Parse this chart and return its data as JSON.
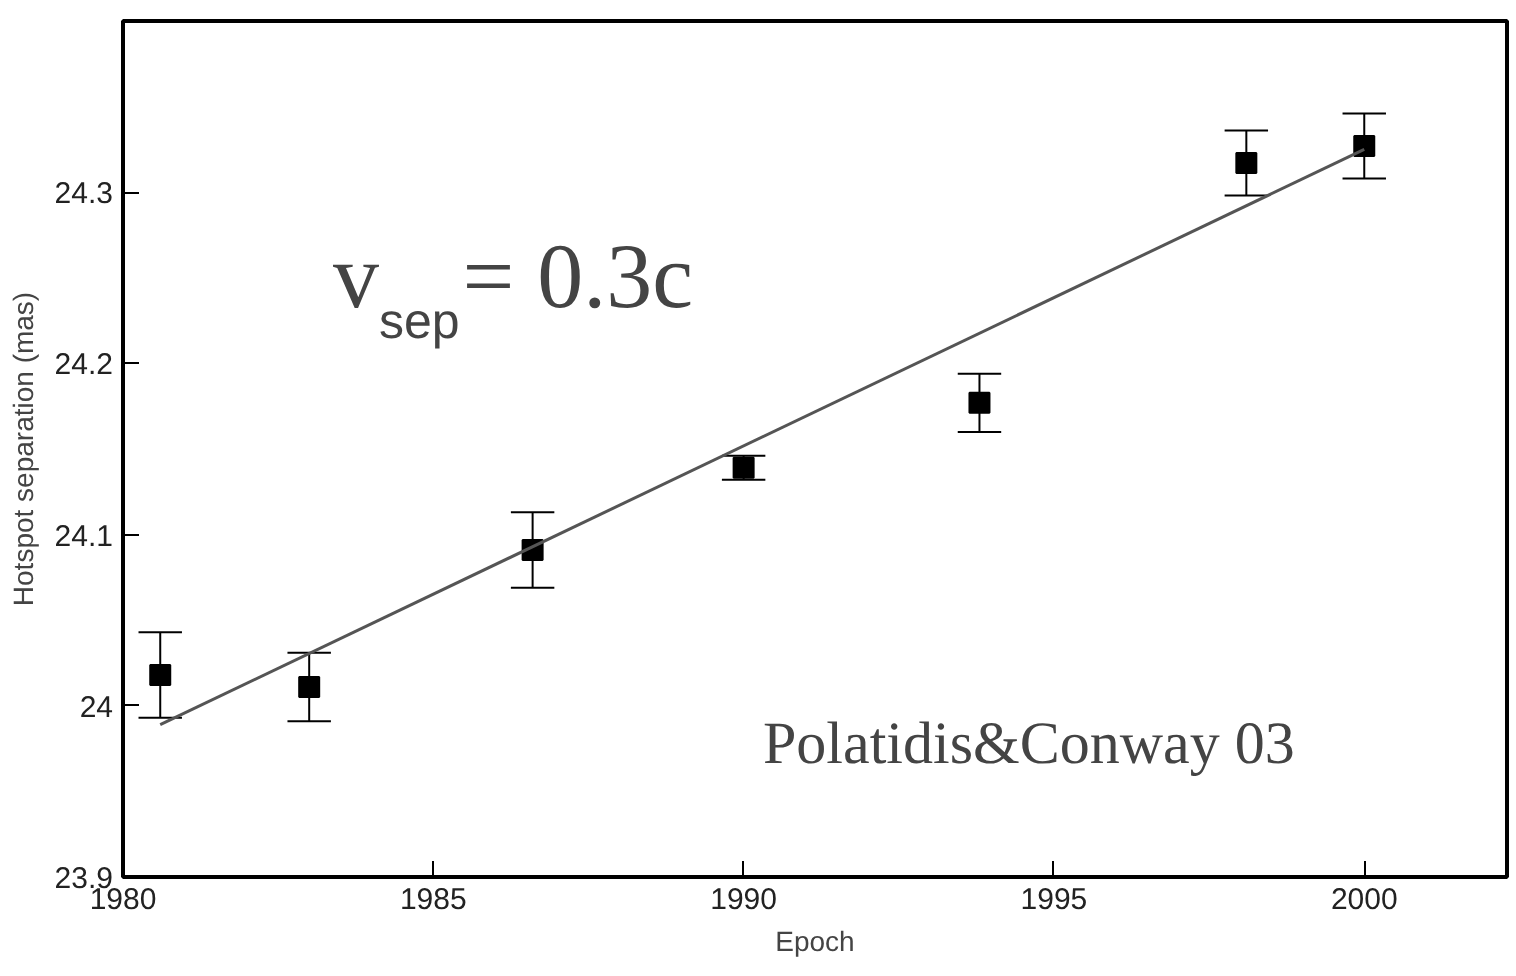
{
  "chart_data": {
    "type": "scatter",
    "xlabel": "Epoch",
    "ylabel": "Hotspot separation (mas)",
    "xlim": [
      1980,
      2002.3
    ],
    "ylim": [
      23.9,
      24.4
    ],
    "xticks": [
      1980,
      1985,
      1990,
      1995,
      2000
    ],
    "yticks": [
      23.9,
      24,
      24.1,
      24.2,
      24.3
    ],
    "marker": "square",
    "grid": false,
    "series": [
      {
        "color": "#000000",
        "x": [
          1980.6,
          1983.0,
          1986.6,
          1990.0,
          1993.8,
          1998.1,
          2000.0
        ],
        "values": [
          24.018,
          24.011,
          24.091,
          24.139,
          24.177,
          24.317,
          24.327
        ],
        "errors": [
          0.025,
          0.02,
          0.022,
          0.007,
          0.017,
          0.019,
          0.019
        ]
      },
      {
        "type": "line",
        "marker": "none",
        "color": "#555555",
        "x": [
          1980.6,
          2000.0
        ],
        "values": [
          23.989,
          24.325
        ]
      }
    ],
    "annotations": [
      {
        "text": "v$_{sep}$= 0.3c"
      },
      {
        "text": "Polatidis&Conway 03"
      }
    ]
  }
}
